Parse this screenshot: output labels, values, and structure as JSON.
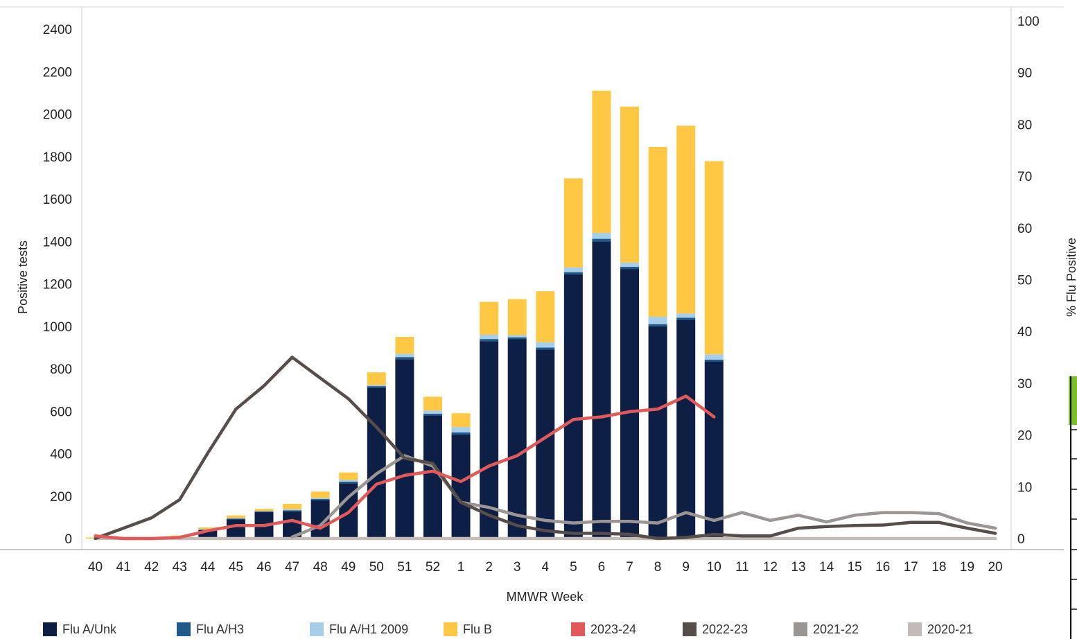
{
  "chart_data": {
    "type": "bar",
    "stacked": true,
    "xlabel": "MMWR Week",
    "ylabel": "Positive tests",
    "y2label": "% Flu Positive",
    "ylim": [
      0,
      2400
    ],
    "y2lim": [
      0,
      100
    ],
    "yticks": [
      0,
      200,
      400,
      600,
      800,
      1000,
      1200,
      1400,
      1600,
      1800,
      2000,
      2200,
      2400
    ],
    "y2ticks": [
      0,
      10,
      20,
      30,
      40,
      50,
      60,
      70,
      80,
      90,
      100
    ],
    "categories": [
      "40",
      "41",
      "42",
      "43",
      "44",
      "45",
      "46",
      "47",
      "48",
      "49",
      "50",
      "51",
      "52",
      "1",
      "2",
      "3",
      "4",
      "5",
      "6",
      "7",
      "8",
      "9",
      "10",
      "11",
      "12",
      "13",
      "14",
      "15",
      "16",
      "17",
      "18",
      "19",
      "20"
    ],
    "bar_series": [
      {
        "name": "Flu A/Unk",
        "color": "#0d1f45",
        "values": [
          0,
          0,
          0,
          8,
          40,
          90,
          125,
          128,
          180,
          260,
          710,
          845,
          580,
          490,
          930,
          940,
          890,
          1245,
          1400,
          1270,
          1000,
          1030,
          835,
          0,
          0,
          0,
          0,
          0,
          0,
          0,
          0,
          0,
          0
        ]
      },
      {
        "name": "Flu A/H3",
        "color": "#1f5a8c",
        "values": [
          0,
          0,
          0,
          0,
          2,
          4,
          3,
          5,
          6,
          8,
          8,
          10,
          8,
          10,
          10,
          8,
          10,
          10,
          12,
          10,
          10,
          10,
          8,
          0,
          0,
          0,
          0,
          0,
          0,
          0,
          0,
          0,
          0
        ]
      },
      {
        "name": "Flu A/H1 2009",
        "color": "#a6cdea",
        "values": [
          0,
          0,
          0,
          0,
          2,
          3,
          2,
          5,
          5,
          8,
          5,
          15,
          15,
          25,
          20,
          10,
          25,
          22,
          28,
          20,
          35,
          20,
          25,
          0,
          0,
          0,
          0,
          0,
          0,
          0,
          0,
          0,
          0
        ]
      },
      {
        "name": "Flu B",
        "color": "#ffc844",
        "values": [
          5,
          0,
          0,
          6,
          8,
          12,
          10,
          25,
          30,
          35,
          60,
          80,
          65,
          65,
          155,
          170,
          240,
          420,
          670,
          735,
          800,
          885,
          910,
          0,
          0,
          0,
          0,
          0,
          0,
          0,
          0,
          0,
          0
        ]
      }
    ],
    "line_series": [
      {
        "name": "2023-24",
        "color": "#e05a5a",
        "values": [
          0.5,
          0,
          0,
          0.2,
          1.5,
          2.5,
          2.5,
          3.5,
          2,
          5,
          10.5,
          12.2,
          13,
          11,
          14,
          16,
          19.5,
          23,
          23.5,
          24.5,
          25,
          27.5,
          23.5,
          null,
          null,
          null,
          null,
          null,
          null,
          null,
          null,
          null,
          null
        ]
      },
      {
        "name": "2022-23",
        "color": "#574d4a",
        "values": [
          0,
          2,
          4,
          7.5,
          16.5,
          25,
          29.5,
          35,
          31,
          27,
          21.5,
          15.5,
          14.5,
          7,
          4.5,
          2.5,
          1.5,
          1,
          1,
          0.8,
          0,
          0.2,
          0.8,
          0.5,
          0.5,
          2,
          2.3,
          2.5,
          2.6,
          3.1,
          3.1,
          2,
          1
        ]
      },
      {
        "name": "2021-22",
        "color": "#9b9593",
        "values": [
          null,
          null,
          null,
          null,
          null,
          null,
          null,
          0.3,
          2.5,
          8,
          12.5,
          16,
          14,
          7,
          6,
          4.5,
          3.5,
          3,
          3.3,
          3.3,
          3,
          5,
          3.5,
          5,
          3.5,
          4.5,
          3.2,
          4.5,
          5,
          5,
          4.8,
          3,
          2
        ]
      },
      {
        "name": "2020-21",
        "color": "#c4bbb8",
        "values": [
          0,
          0,
          0,
          0,
          0,
          0,
          0,
          0,
          0,
          0,
          0,
          0,
          0,
          0,
          0,
          0,
          0,
          0,
          0,
          0,
          0,
          0,
          0,
          0,
          0,
          0,
          0,
          0,
          0,
          0,
          0,
          0,
          0
        ]
      }
    ]
  }
}
